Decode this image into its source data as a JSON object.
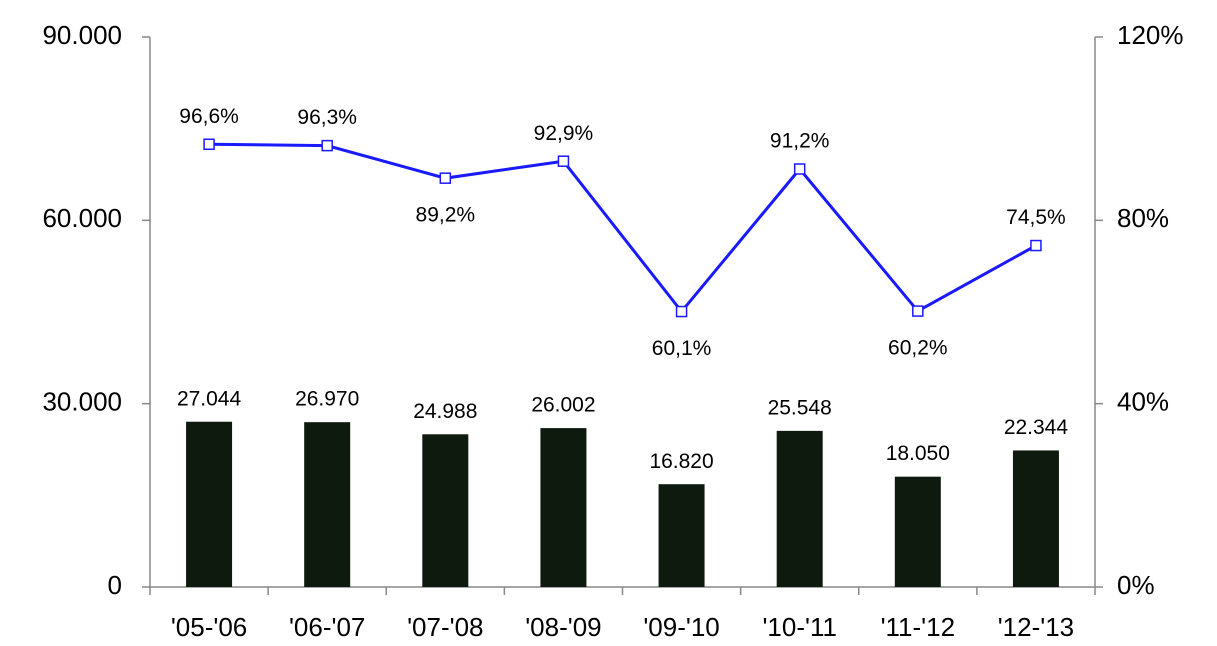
{
  "chart_data": {
    "type": "bar",
    "categories": [
      "'05-'06",
      "'06-'07",
      "'07-'08",
      "'08-'09",
      "'09-'10",
      "'10-'11",
      "'11-'12",
      "'12-'13"
    ],
    "series": [
      {
        "type": "bar",
        "color": "#0d1a0d",
        "values": [
          27044,
          26970,
          24988,
          26002,
          16820,
          25548,
          18050,
          22344
        ],
        "value_labels": [
          "27.044",
          "26.970",
          "24.988",
          "26.002",
          "16.820",
          "25.548",
          "18.050",
          "22.344"
        ]
      },
      {
        "type": "line",
        "axis": "y2",
        "color": "#1a1aff",
        "values": [
          96.6,
          96.3,
          89.2,
          92.9,
          60.1,
          91.2,
          60.2,
          74.5
        ],
        "value_labels": [
          "96,6%",
          "96,3%",
          "89,2%",
          "92,9%",
          "60,1%",
          "91,2%",
          "60,2%",
          "74,5%"
        ]
      }
    ],
    "ylim": [
      0,
      90000
    ],
    "yticks": [
      0,
      {
        "value": 30000,
        "label": "30.000"
      },
      {
        "value": 60000,
        "label": "60.000"
      },
      {
        "value": 90000,
        "label": "90.000"
      }
    ],
    "y2lim": [
      0,
      120
    ],
    "y2ticks": [
      {
        "value": 0,
        "label": "0%"
      },
      {
        "value": 40,
        "label": "40%"
      },
      {
        "value": 80,
        "label": "80%"
      },
      {
        "value": 120,
        "label": "120%"
      }
    ]
  }
}
